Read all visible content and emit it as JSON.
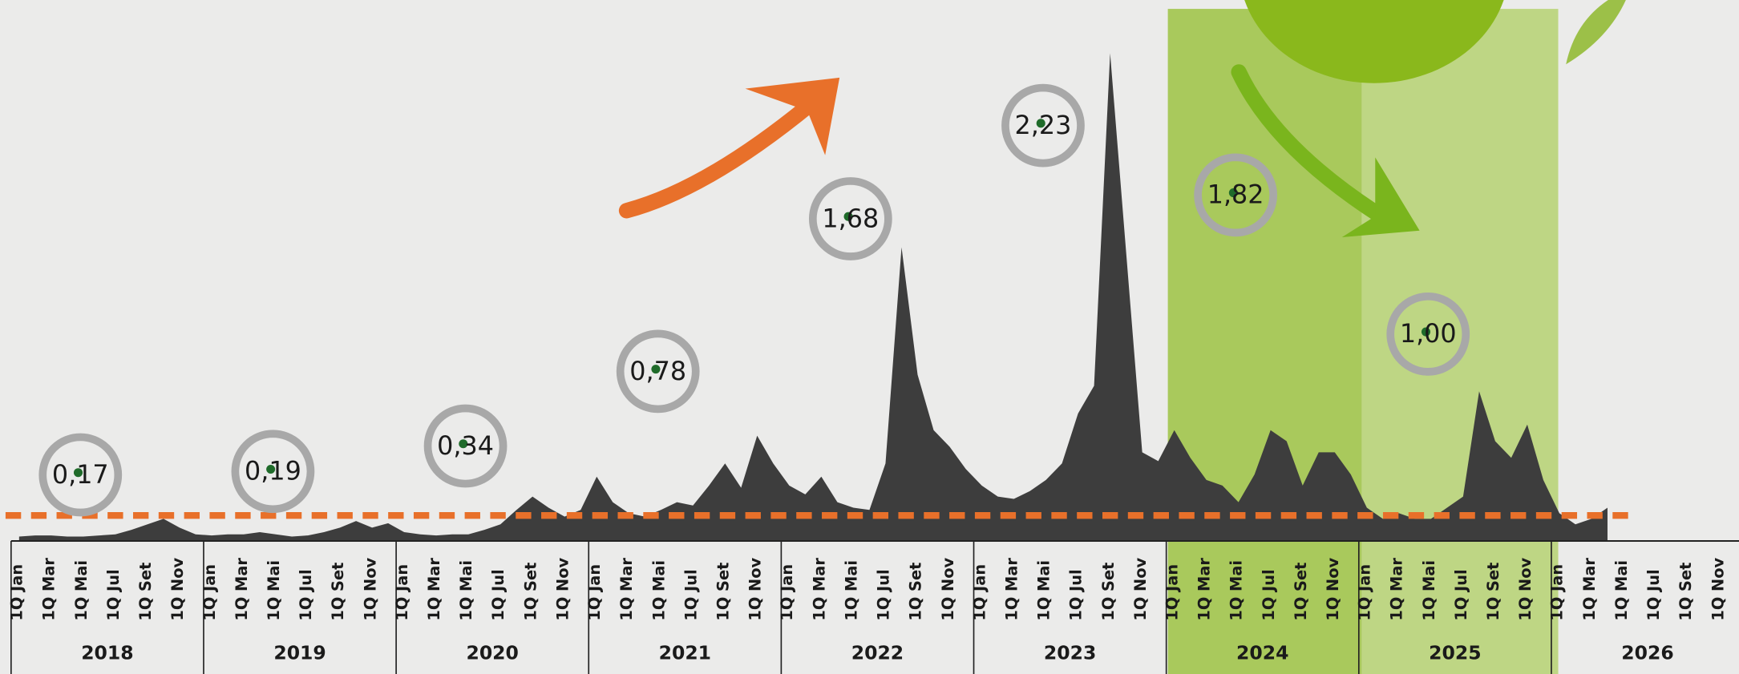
{
  "chart_data": {
    "type": "area",
    "years": [
      "2018",
      "2019",
      "2020",
      "2021",
      "2022",
      "2023",
      "2024",
      "2025",
      "2026"
    ],
    "month_labels": [
      "1Q Jan",
      "1Q Mar",
      "1Q Mai",
      "1Q Jul",
      "1Q Set",
      "1Q Nov"
    ],
    "x": [
      "2018-01",
      "2018-02",
      "2018-03",
      "2018-04",
      "2018-05",
      "2018-06",
      "2018-07",
      "2018-08",
      "2018-09",
      "2018-10",
      "2018-11",
      "2018-12",
      "2019-01",
      "2019-02",
      "2019-03",
      "2019-04",
      "2019-05",
      "2019-06",
      "2019-07",
      "2019-08",
      "2019-09",
      "2019-10",
      "2019-11",
      "2019-12",
      "2020-01",
      "2020-02",
      "2020-03",
      "2020-04",
      "2020-05",
      "2020-06",
      "2020-07",
      "2020-08",
      "2020-09",
      "2020-10",
      "2020-11",
      "2020-12",
      "2021-01",
      "2021-02",
      "2021-03",
      "2021-04",
      "2021-05",
      "2021-06",
      "2021-07",
      "2021-08",
      "2021-09",
      "2021-10",
      "2021-11",
      "2021-12",
      "2022-01",
      "2022-02",
      "2022-03",
      "2022-04",
      "2022-05",
      "2022-06",
      "2022-07",
      "2022-08",
      "2022-09",
      "2022-10",
      "2022-11",
      "2022-12",
      "2023-01",
      "2023-02",
      "2023-03",
      "2023-04",
      "2023-05",
      "2023-06",
      "2023-07",
      "2023-08",
      "2023-09",
      "2023-10",
      "2023-11",
      "2023-12",
      "2024-01",
      "2024-02",
      "2024-03",
      "2024-04",
      "2024-05",
      "2024-06",
      "2024-07",
      "2024-08",
      "2024-09",
      "2024-10",
      "2024-11",
      "2024-12",
      "2025-01",
      "2025-02",
      "2025-03",
      "2025-04",
      "2025-05",
      "2025-06",
      "2025-07",
      "2025-08",
      "2025-09",
      "2025-10",
      "2025-11",
      "2025-12",
      "2026-01",
      "2026-02",
      "2026-03",
      "2026-04"
    ],
    "series": [
      {
        "color": "#3d3d3d",
        "values": [
          4,
          5,
          5,
          4,
          4,
          5,
          6,
          10,
          15,
          20,
          12,
          6,
          5,
          6,
          6,
          8,
          6,
          4,
          5,
          8,
          12,
          18,
          12,
          16,
          8,
          6,
          5,
          6,
          6,
          10,
          15,
          28,
          40,
          30,
          22,
          28,
          58,
          35,
          25,
          22,
          28,
          35,
          32,
          50,
          70,
          48,
          95,
          70,
          50,
          42,
          58,
          35,
          30,
          28,
          70,
          265,
          150,
          100,
          85,
          65,
          50,
          40,
          38,
          45,
          55,
          70,
          115,
          140,
          440,
          260,
          80,
          72,
          100,
          75,
          55,
          50,
          35,
          60,
          100,
          90,
          50,
          80,
          80,
          60,
          30,
          20,
          25,
          20,
          20,
          30,
          40,
          135,
          90,
          75,
          105,
          55,
          25,
          15,
          20,
          30
        ]
      },
      {
        "axis": "y2",
        "color": "#a8a8a8",
        "x": [
          "2018",
          "2019",
          "2020",
          "2021",
          "2022",
          "2023",
          "2024",
          "2025"
        ],
        "values": [
          0.17,
          0.19,
          0.34,
          0.78,
          1.68,
          2.23,
          1.82,
          1.0
        ],
        "value_labels": [
          "0,17",
          "0,19",
          "0,34",
          "0,78",
          "1,68",
          "2,23",
          "1,82",
          "1,00"
        ]
      }
    ],
    "ylim": [
      0,
      488
    ],
    "y2lim": [
      -0.22,
      2.97
    ],
    "reference_line": {
      "value": 23,
      "color": "#e8702a"
    }
  }
}
